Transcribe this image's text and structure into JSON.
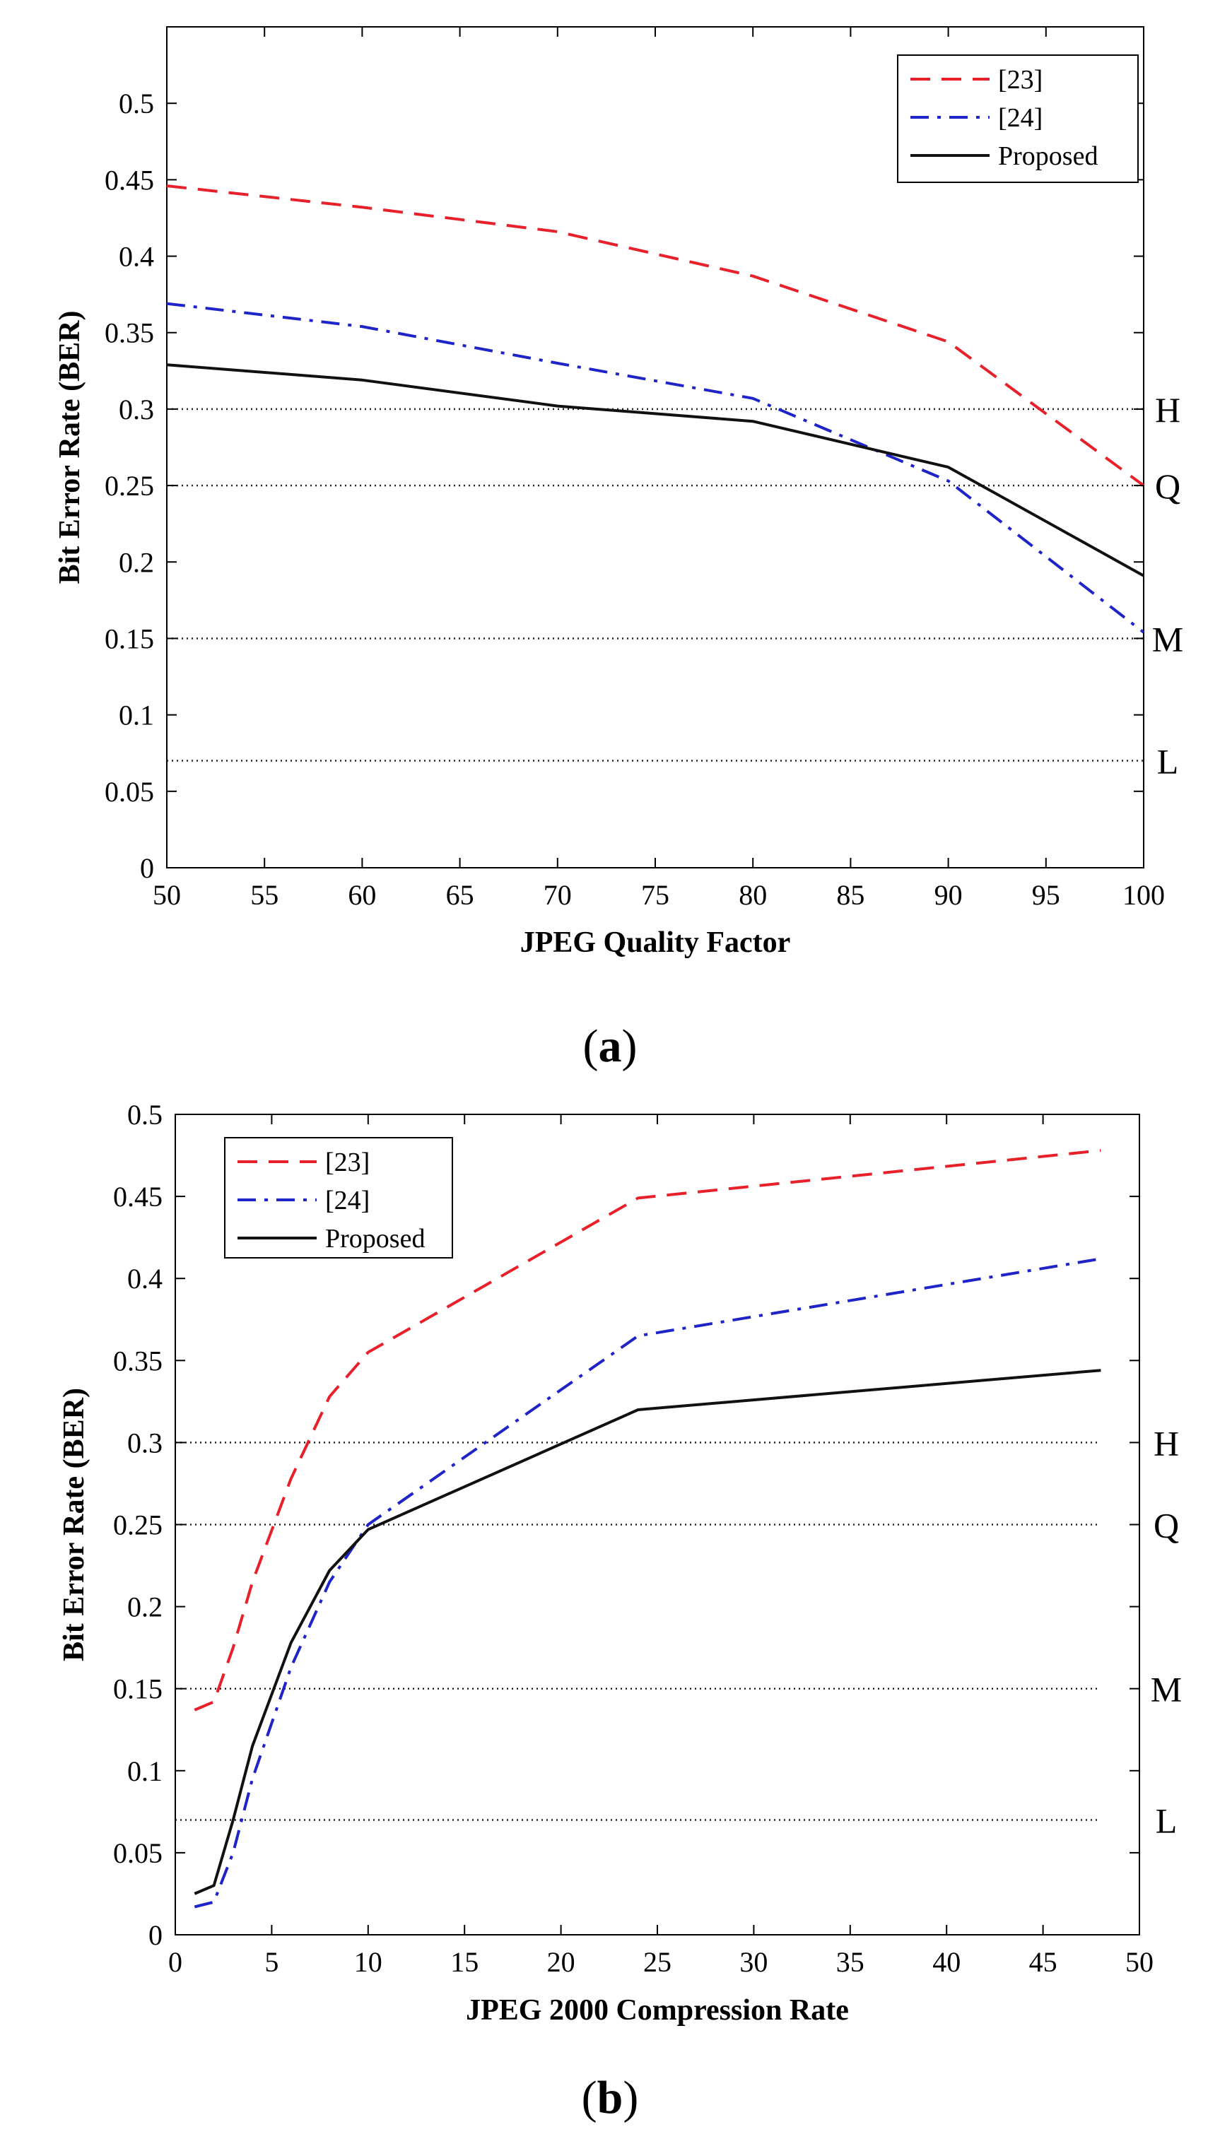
{
  "chart_data": [
    {
      "type": "line",
      "panel_label": "(a)",
      "panel_letter": "a",
      "xlabel": "JPEG Quality Factor",
      "ylabel": "Bit Error Rate (BER)",
      "xlim": [
        50,
        100
      ],
      "ylim": [
        0,
        0.55
      ],
      "xticks": [
        "50",
        "55",
        "60",
        "65",
        "70",
        "75",
        "80",
        "85",
        "90",
        "95",
        "100"
      ],
      "yticks": [
        "0",
        "0.05",
        "0.1",
        "0.15",
        "0.2",
        "0.25",
        "0.3",
        "0.35",
        "0.4",
        "0.45",
        "0.5"
      ],
      "legend_position": "top-right",
      "series": [
        {
          "name": "[23]",
          "color": "#e8202a",
          "style": "dashed",
          "x": [
            50,
            60,
            70,
            80,
            90,
            100
          ],
          "y": [
            0.446,
            0.432,
            0.416,
            0.387,
            0.344,
            0.25
          ]
        },
        {
          "name": "[24]",
          "color": "#1f24c8",
          "style": "dashdot",
          "x": [
            50,
            60,
            70,
            80,
            90,
            100
          ],
          "y": [
            0.369,
            0.354,
            0.33,
            0.307,
            0.253,
            0.154
          ]
        },
        {
          "name": "Proposed",
          "color": "#111111",
          "style": "solid",
          "x": [
            50,
            60,
            70,
            80,
            90,
            100
          ],
          "y": [
            0.329,
            0.319,
            0.302,
            0.292,
            0.262,
            0.191
          ]
        }
      ],
      "reference_lines": [
        {
          "label": "H",
          "y": 0.3
        },
        {
          "label": "Q",
          "y": 0.25
        },
        {
          "label": "M",
          "y": 0.15
        },
        {
          "label": "L",
          "y": 0.07
        }
      ]
    },
    {
      "type": "line",
      "panel_label": "(b)",
      "panel_letter": "b",
      "xlabel": "JPEG 2000 Compression Rate",
      "ylabel": "Bit Error Rate (BER)",
      "xlim": [
        0,
        50
      ],
      "ylim": [
        0,
        0.5
      ],
      "xticks": [
        "0",
        "5",
        "10",
        "15",
        "20",
        "25",
        "30",
        "35",
        "40",
        "45",
        "50"
      ],
      "yticks": [
        "0",
        "0.05",
        "0.1",
        "0.15",
        "0.2",
        "0.25",
        "0.3",
        "0.35",
        "0.4",
        "0.45",
        "0.5"
      ],
      "legend_position": "top-left",
      "series": [
        {
          "name": "[23]",
          "color": "#e8202a",
          "style": "dashed",
          "x": [
            1,
            2,
            3,
            4,
            6,
            8,
            10,
            24,
            48
          ],
          "y": [
            0.137,
            0.142,
            0.175,
            0.215,
            0.278,
            0.328,
            0.355,
            0.449,
            0.478
          ]
        },
        {
          "name": "[24]",
          "color": "#1f24c8",
          "style": "dashdot",
          "x": [
            1,
            2,
            3,
            4,
            6,
            8,
            10,
            24,
            48
          ],
          "y": [
            0.017,
            0.02,
            0.05,
            0.095,
            0.163,
            0.215,
            0.25,
            0.365,
            0.412
          ]
        },
        {
          "name": "Proposed",
          "color": "#111111",
          "style": "solid",
          "x": [
            1,
            2,
            3,
            4,
            6,
            8,
            10,
            24,
            48
          ],
          "y": [
            0.025,
            0.03,
            0.07,
            0.115,
            0.178,
            0.222,
            0.247,
            0.32,
            0.344
          ]
        }
      ],
      "reference_lines": [
        {
          "label": "H",
          "y": 0.3
        },
        {
          "label": "Q",
          "y": 0.25
        },
        {
          "label": "M",
          "y": 0.15
        },
        {
          "label": "L",
          "y": 0.07
        }
      ]
    }
  ]
}
